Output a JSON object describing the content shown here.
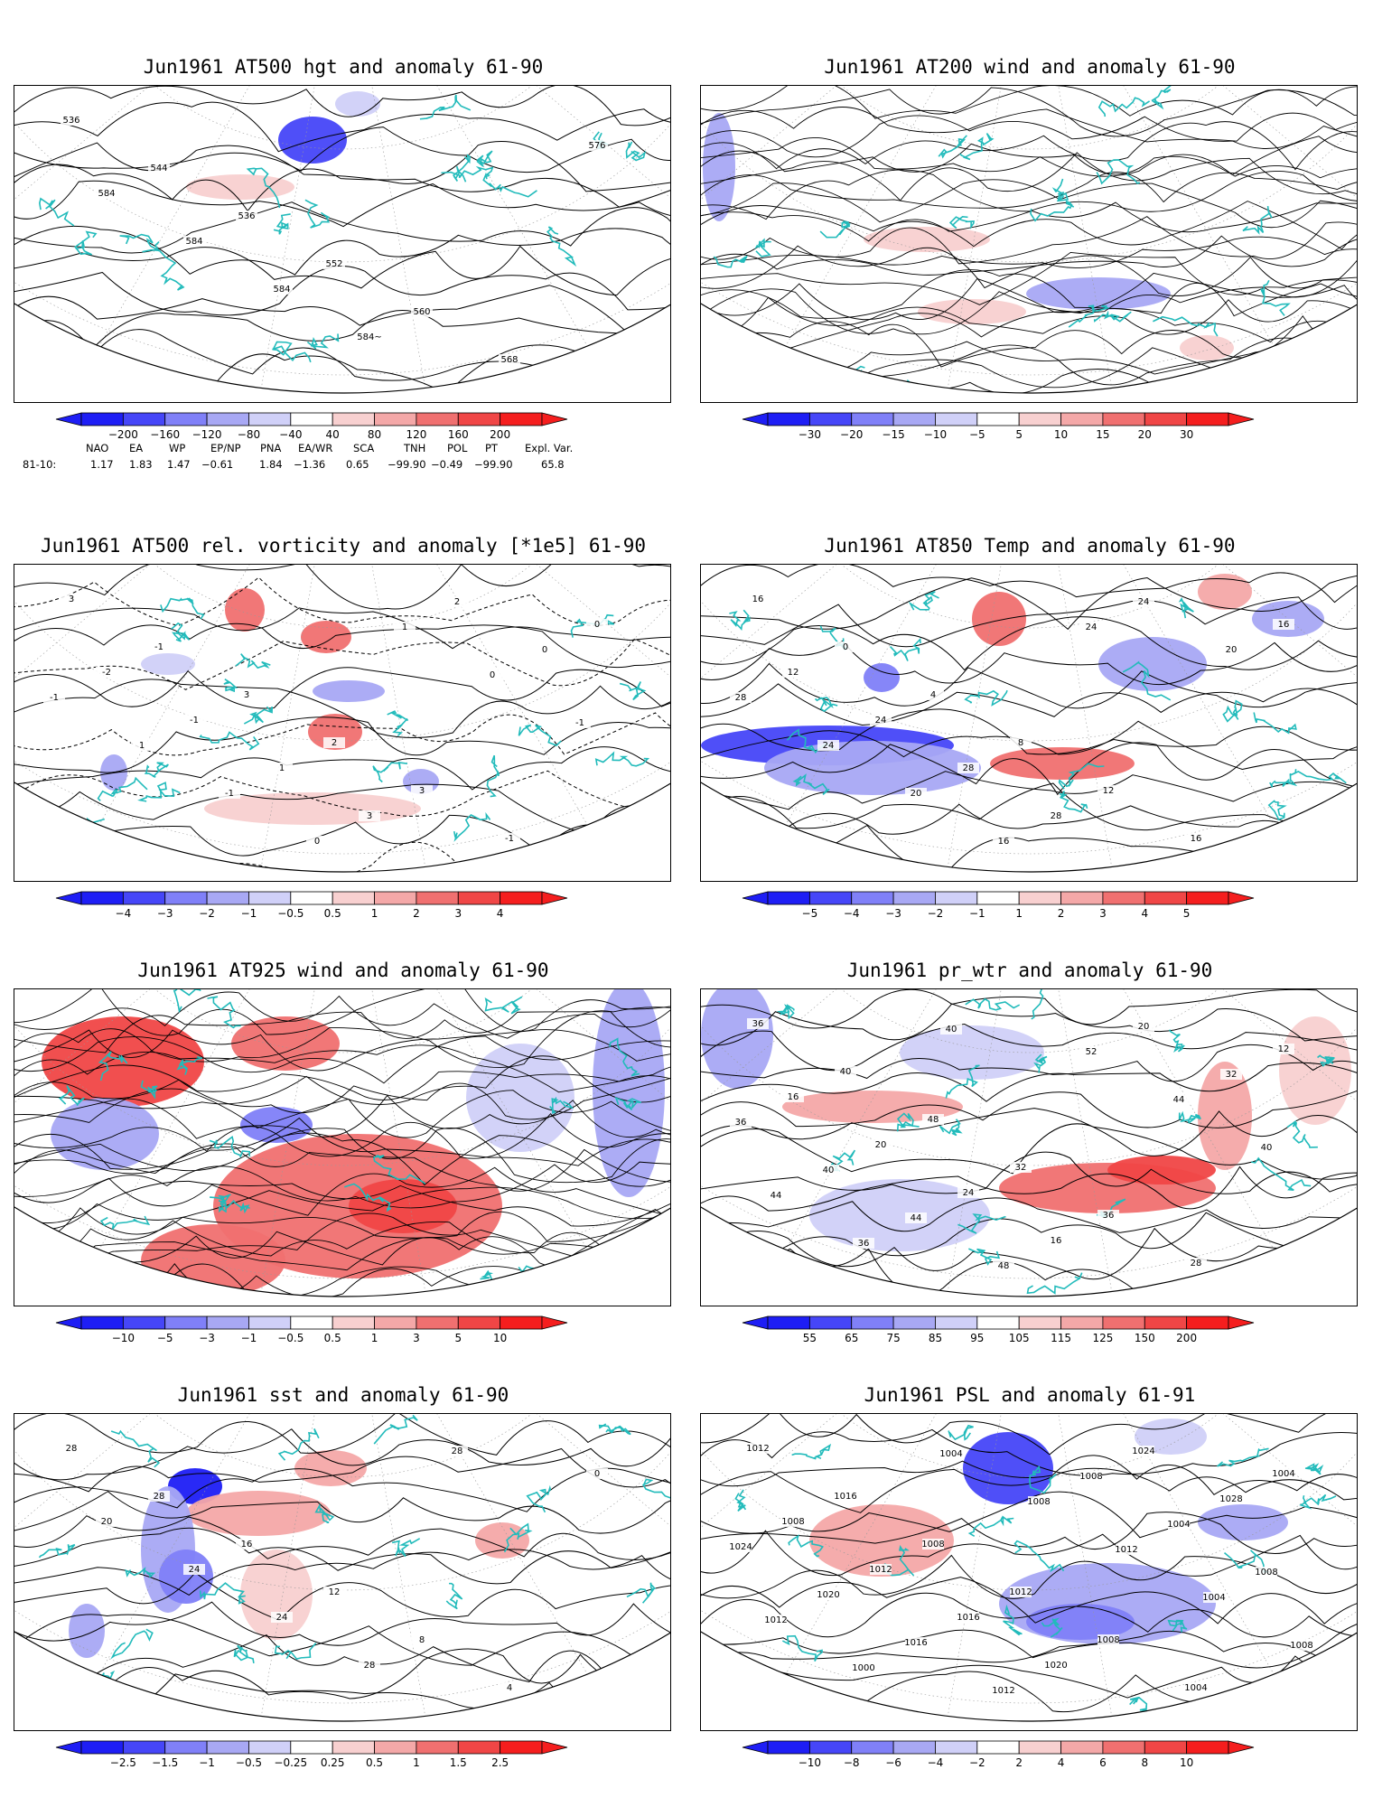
{
  "panels": [
    {
      "id": "p1",
      "title": "Jun1961 AT500 hgt and anomaly 61-90",
      "kind": "contour",
      "contour_labels": [
        "536",
        "544",
        "536",
        "552",
        "560",
        "568",
        "576",
        "584",
        "584",
        "584",
        "584~"
      ],
      "colorbar": {
        "ticks": [
          "−200",
          "−160",
          "−120",
          "−80",
          "−40",
          "40",
          "80",
          "120",
          "160",
          "200"
        ]
      }
    },
    {
      "id": "p2",
      "title": "Jun1961 AT200 wind and anomaly 61-90",
      "kind": "streamline",
      "contour_labels": [],
      "colorbar": {
        "ticks": [
          "−30",
          "−20",
          "−15",
          "−10",
          "−5",
          "5",
          "10",
          "15",
          "20",
          "30"
        ]
      }
    },
    {
      "id": "p3",
      "title": "Jun1961 AT500 rel. vorticity and anomaly [*1e5] 61-90",
      "kind": "contour",
      "contour_labels": [
        "3",
        "-1",
        "3",
        "2",
        "3",
        "-1",
        "0",
        "-2",
        "-1",
        "1",
        "3",
        "2",
        "0",
        "-1",
        "1",
        "-1",
        "0",
        "1",
        "0",
        "-1"
      ],
      "colorbar": {
        "ticks": [
          "−4",
          "−3",
          "−2",
          "−1",
          "−0.5",
          "0.5",
          "1",
          "2",
          "3",
          "4"
        ]
      }
    },
    {
      "id": "p4",
      "title": "Jun1961 AT850 Temp and anomaly 61-90",
      "kind": "contour",
      "contour_labels": [
        "16",
        "0",
        "4",
        "8",
        "12",
        "16",
        "16",
        "12",
        "24",
        "28",
        "28",
        "24",
        "20",
        "28",
        "24",
        "20",
        "16",
        "24"
      ],
      "colorbar": {
        "ticks": [
          "−5",
          "−4",
          "−3",
          "−2",
          "−1",
          "1",
          "2",
          "3",
          "4",
          "5"
        ]
      }
    },
    {
      "id": "p5",
      "title": "Jun1961 AT925 wind and anomaly 61-90",
      "kind": "streamline",
      "contour_labels": [],
      "colorbar": {
        "ticks": [
          "−10",
          "−5",
          "−3",
          "−1",
          "−0.5",
          "0.5",
          "1",
          "3",
          "5",
          "10"
        ]
      }
    },
    {
      "id": "p6",
      "title": "Jun1961 pr_wtr and anomaly 61-90",
      "kind": "contour",
      "contour_labels": [
        "36",
        "40",
        "48",
        "32",
        "36",
        "28",
        "12",
        "16",
        "20",
        "24",
        "16",
        "20",
        "32",
        "36",
        "40",
        "44",
        "48",
        "52",
        "44",
        "40",
        "44",
        "36",
        "40"
      ],
      "colorbar": {
        "ticks": [
          "55",
          "65",
          "75",
          "85",
          "95",
          "105",
          "115",
          "125",
          "150",
          "200"
        ]
      }
    },
    {
      "id": "p7",
      "title": "Jun1961 sst and anomaly 61-90",
      "kind": "contour",
      "contour_labels": [
        "28",
        "28",
        "16",
        "12",
        "8",
        "4",
        "0",
        "20",
        "24",
        "24",
        "28",
        "28"
      ],
      "colorbar": {
        "ticks": [
          "−2.5",
          "−1.5",
          "−1",
          "−0.5",
          "−0.25",
          "0.25",
          "0.5",
          "1",
          "1.5",
          "2.5"
        ]
      }
    },
    {
      "id": "p8",
      "title": "Jun1961 PSL and anomaly 61-91",
      "kind": "contour",
      "contour_labels": [
        "1012",
        "1016",
        "1008",
        "1012",
        "1008",
        "1004",
        "1004",
        "1008",
        "1012",
        "1016",
        "1020",
        "1024",
        "1028",
        "1024",
        "1020",
        "1016",
        "1012",
        "1008",
        "1004",
        "1008",
        "1012",
        "1000",
        "1004",
        "1008",
        "1012",
        "1004",
        "1008"
      ],
      "colorbar": {
        "ticks": [
          "−10",
          "−8",
          "−6",
          "−4",
          "−2",
          "2",
          "4",
          "6",
          "8",
          "10"
        ]
      }
    }
  ],
  "indices": {
    "headers": [
      "NAO",
      "EA",
      "WP",
      "EP/NP",
      "PNA",
      "EA/WR",
      "SCA",
      "TNH",
      "POL",
      "PT",
      "Expl. Var."
    ],
    "row_label": "81-10:",
    "values": [
      "1.17",
      "1.83",
      "1.47",
      "−0.61",
      "1.84",
      "−1.36",
      "0.65",
      "−99.90",
      "−0.49",
      "−99.90",
      "65.8"
    ]
  },
  "colors": {
    "coast": "#22bbbb",
    "blue_scale": [
      "#1e1ef5",
      "#4646f8",
      "#8080f8",
      "#a8a8f4",
      "#d0d0f8"
    ],
    "red_scale": [
      "#f8d0d0",
      "#f4a8a8",
      "#f07070",
      "#f04646",
      "#f51e1e"
    ],
    "contour": "#000000"
  }
}
